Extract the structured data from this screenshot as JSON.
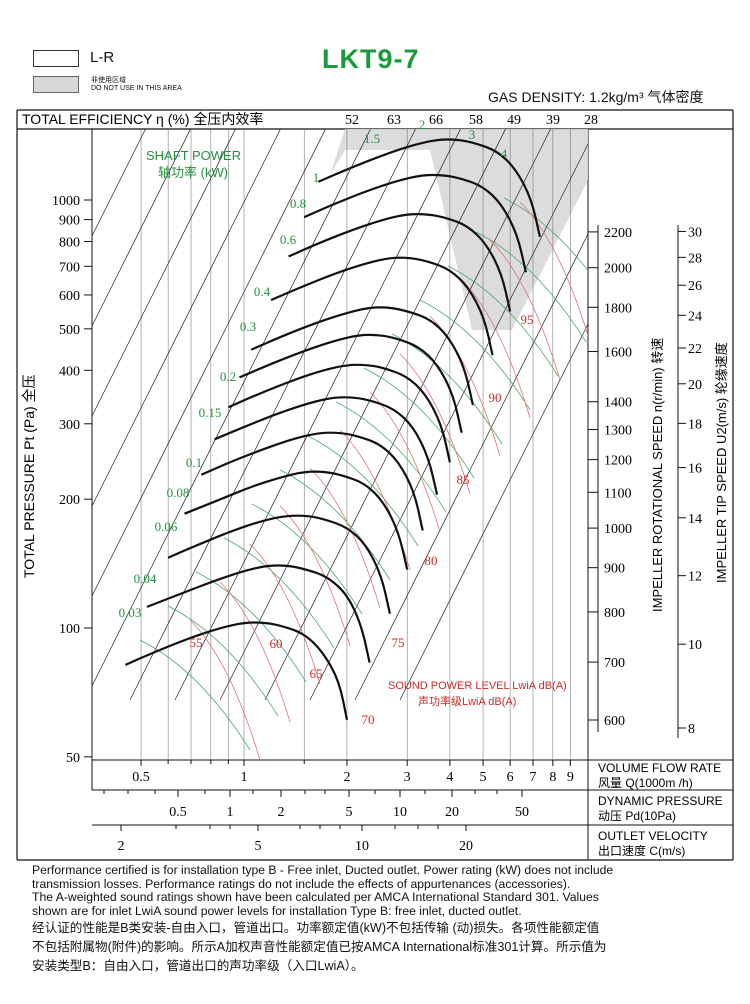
{
  "legend": {
    "lr_label": "L-R",
    "no_use_cn": "非使用区域",
    "no_use_en": "DO NOT USE IN THIS AREA"
  },
  "title": "LKT9-7",
  "gas_density": "GAS DENSITY: 1.2kg/m³ 气体密度",
  "efficiency": {
    "label": "TOTAL EFFICIENCY η (%) 全压内效率",
    "ticks": [
      "52",
      "63",
      "66",
      "58",
      "49",
      "39",
      "28"
    ]
  },
  "shaft_power": {
    "label_en": "SHAFT POWER",
    "label_cn": "轴功率 (kW)",
    "values": [
      "1.5",
      "2",
      "3",
      "4",
      "1",
      "0.8",
      "0.6",
      "0.4",
      "0.3",
      "0.2",
      "0.15",
      "0.1",
      "0.08",
      "0.06",
      "0.04",
      "0.03"
    ]
  },
  "sound": {
    "label_en": "SOUND POWER LEVEL LwiA dB(A)",
    "label_cn": "声功率级LwiA dB(A)",
    "values": [
      "55",
      "60",
      "65",
      "70",
      "75",
      "80",
      "85",
      "90",
      "95"
    ]
  },
  "colors": {
    "title_green": "#1a9a3a",
    "green_label": "#23913a",
    "red_label": "#d02828",
    "shade": "#d8d8d8",
    "curve": "#111111",
    "green_line": "#4aa86a",
    "red_line": "#e07070"
  },
  "chart_data": {
    "type": "line",
    "title": "LKT9-7",
    "y_axis": {
      "label": "TOTAL PRESSURE Pt (Pa) 全压",
      "scale": "log",
      "ticks": [
        50,
        100,
        200,
        300,
        400,
        500,
        600,
        700,
        800,
        900,
        1000
      ],
      "tick_labels": [
        "50",
        "100",
        "200",
        "300",
        "400",
        "500",
        "600",
        "700",
        "800",
        "900",
        "1000"
      ]
    },
    "x_axis_flow": {
      "label_en": "VOLUME FLOW RATE",
      "label_cn": "风量  Q(1000m /h)",
      "scale": "log",
      "ticks": [
        0.5,
        1,
        2,
        3,
        4,
        5,
        6,
        7,
        8,
        9
      ],
      "tick_labels": [
        "0.5",
        "1",
        "2",
        "3",
        "4",
        "5",
        "6",
        "7",
        "8",
        "9"
      ]
    },
    "x_axis_dynamic_pressure": {
      "label_en": "DYNAMIC PRESSURE",
      "label_cn": "动压  Pd(10Pa)",
      "tick_labels": [
        "0.5",
        "1",
        "2",
        "5",
        "10",
        "20",
        "50"
      ]
    },
    "x_axis_outlet_velocity": {
      "label_en": "OUTLET VELOCITY",
      "label_cn": "出口速度  C(m/s)",
      "tick_labels": [
        "2",
        "5",
        "10",
        "20"
      ]
    },
    "rotational_speed": {
      "label": "IMPELLER ROTATIONAL SPEED n(r/min) 转速",
      "ticks": [
        600,
        700,
        800,
        900,
        1000,
        1100,
        1200,
        1300,
        1400,
        1600,
        1800,
        2000,
        2200
      ],
      "tick_labels": [
        "600",
        "700",
        "800",
        "900",
        "1000",
        "1100",
        "1200",
        "1300",
        "1400",
        "1600",
        "1800",
        "2000",
        "2200"
      ]
    },
    "tip_speed": {
      "label": "IMPELLER TIP SPEED U2(m/s) 轮缘速度",
      "ticks": [
        8,
        10,
        12,
        14,
        16,
        18,
        20,
        22,
        24,
        26,
        28,
        30
      ],
      "tick_labels": [
        "8",
        "10",
        "12",
        "14",
        "16",
        "18",
        "20",
        "22",
        "24",
        "26",
        "28",
        "30"
      ]
    },
    "series": [
      {
        "rpm": 600,
        "x": [
          0.45,
          0.55,
          0.7,
          0.85,
          1.0,
          1.15,
          1.3,
          1.5,
          1.7,
          1.9,
          2.0
        ],
        "y": [
          82,
          88,
          95,
          100,
          103,
          103,
          101,
          97,
          88,
          75,
          61
        ]
      },
      {
        "rpm": 700,
        "x": [
          0.52,
          0.65,
          0.82,
          1.0,
          1.17,
          1.35,
          1.52,
          1.75,
          2.0,
          2.2,
          2.33
        ],
        "y": [
          112,
          120,
          129,
          136,
          140,
          140,
          137,
          132,
          120,
          102,
          83
        ]
      },
      {
        "rpm": 800,
        "x": [
          0.6,
          0.74,
          0.93,
          1.13,
          1.33,
          1.54,
          1.74,
          2.0,
          2.27,
          2.52,
          2.67
        ],
        "y": [
          146,
          157,
          169,
          178,
          183,
          183,
          179,
          172,
          157,
          133,
          108
        ]
      },
      {
        "rpm": 900,
        "x": [
          0.67,
          0.83,
          1.05,
          1.28,
          1.5,
          1.73,
          1.95,
          2.25,
          2.55,
          2.83,
          3.0
        ],
        "y": [
          185,
          198,
          214,
          225,
          232,
          232,
          227,
          218,
          198,
          168,
          137
        ]
      },
      {
        "rpm": 1000,
        "x": [
          0.75,
          0.92,
          1.17,
          1.42,
          1.67,
          1.92,
          2.17,
          2.5,
          2.83,
          3.15,
          3.33
        ],
        "y": [
          228,
          245,
          264,
          278,
          286,
          286,
          280,
          269,
          245,
          208,
          169
        ]
      },
      {
        "rpm": 1100,
        "x": [
          0.82,
          1.01,
          1.28,
          1.56,
          1.83,
          2.11,
          2.38,
          2.75,
          3.12,
          3.46,
          3.67
        ],
        "y": [
          276,
          296,
          319,
          336,
          346,
          346,
          339,
          325,
          296,
          251,
          205
        ]
      },
      {
        "rpm": 1200,
        "x": [
          0.9,
          1.1,
          1.4,
          1.7,
          2.0,
          2.3,
          2.6,
          3.0,
          3.4,
          3.78,
          4.0
        ],
        "y": [
          328,
          352,
          380,
          400,
          412,
          412,
          404,
          387,
          352,
          299,
          244
        ]
      },
      {
        "rpm": 1300,
        "x": [
          0.97,
          1.19,
          1.52,
          1.84,
          2.17,
          2.49,
          2.82,
          3.25,
          3.68,
          4.09,
          4.33
        ],
        "y": [
          385,
          413,
          446,
          469,
          484,
          484,
          474,
          454,
          413,
          351,
          286
        ]
      },
      {
        "rpm": 1400,
        "x": [
          1.05,
          1.28,
          1.63,
          1.98,
          2.33,
          2.68,
          3.03,
          3.5,
          3.97,
          4.41,
          4.67
        ],
        "y": [
          447,
          479,
          517,
          544,
          561,
          561,
          549,
          527,
          479,
          407,
          332
        ]
      },
      {
        "rpm": 1600,
        "x": [
          1.2,
          1.47,
          1.87,
          2.27,
          2.67,
          3.07,
          3.47,
          4.0,
          4.53,
          5.04,
          5.33
        ],
        "y": [
          584,
          626,
          676,
          711,
          733,
          733,
          718,
          688,
          626,
          532,
          434
        ]
      },
      {
        "rpm": 1800,
        "x": [
          1.35,
          1.65,
          2.1,
          2.55,
          3.0,
          3.45,
          3.9,
          4.5,
          5.1,
          5.67,
          6.0
        ],
        "y": [
          738,
          792,
          855,
          900,
          927,
          927,
          909,
          871,
          792,
          673,
          549
        ]
      },
      {
        "rpm": 2000,
        "x": [
          1.5,
          1.83,
          2.33,
          2.83,
          3.33,
          3.83,
          4.33,
          5.0,
          5.67,
          6.3,
          6.67
        ],
        "y": [
          912,
          978,
          1056,
          1111,
          1144,
          1144,
          1122,
          1076,
          978,
          831,
          678
        ]
      },
      {
        "rpm": 2200,
        "x": [
          1.65,
          2.02,
          2.57,
          3.12,
          3.67,
          4.22,
          4.77,
          5.5,
          6.23,
          6.93,
          7.33
        ],
        "y": [
          1103,
          1183,
          1277,
          1344,
          1385,
          1385,
          1357,
          1301,
          1183,
          1005,
          820
        ]
      }
    ]
  },
  "notes": {
    "en1": "Performance certified is for installation type B - Free inlet, Ducted outlet. Power rating (kW) does not include",
    "en2": "transmission losses. Performance ratings do not include the effects of appurtenances (accessories).",
    "en3": "The A-weighted sound ratings shown have been calculated per AMCA International Standard 301. Values",
    "en4": "shown are for inlet LwiA sound power levels for installation Type B: free inlet, ducted outlet.",
    "cn1": "经认证的性能是B类安装-自由入口，管道出口。功率额定值(kW)不包括传输 (动)损失。各项性能额定值",
    "cn2": "不包括附属物(附件)的影响。所示A加权声音性能额定值已按AMCA International标准301计算。所示值为",
    "cn3": "安装类型B：自由入口，管道出口的声功率级（入口LwiA）。"
  }
}
